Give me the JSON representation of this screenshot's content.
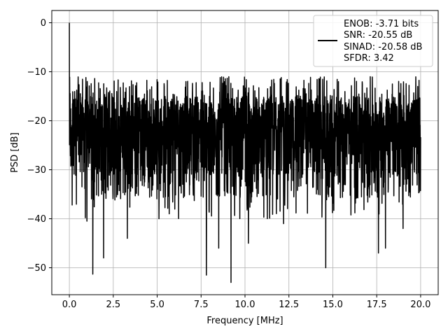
{
  "chart_data": {
    "type": "line",
    "title": "",
    "xlabel": "Frequency [MHz]",
    "ylabel": "PSD [dB]",
    "xlim": [
      -1.0,
      21.0
    ],
    "ylim": [
      -55.5,
      2.5
    ],
    "xticks": [
      0.0,
      2.5,
      5.0,
      7.5,
      10.0,
      12.5,
      15.0,
      17.5,
      20.0
    ],
    "xtick_labels": [
      "0.0",
      "2.5",
      "5.0",
      "7.5",
      "10.0",
      "12.5",
      "15.0",
      "17.5",
      "20.0"
    ],
    "yticks": [
      0,
      -10,
      -20,
      -30,
      -40,
      -50
    ],
    "ytick_labels": [
      "0",
      "−10",
      "−20",
      "−30",
      "−40",
      "−50"
    ],
    "grid": true,
    "legend_position": "top-right",
    "legend_entries": [
      "ENOB: -3.71 bits",
      "SNR: -20.55 dB",
      "SINAD: -20.58 dB",
      "SFDR: 3.42"
    ],
    "line_color": "#000000",
    "x_range": [
      0.0,
      20.0
    ],
    "dc_peak": {
      "x": 0.0,
      "y": 0.0
    },
    "noise_floor": {
      "typical_low": -27.0,
      "typical_high": -15.0,
      "band_low": -31.0,
      "band_high": -11.0
    },
    "deep_dips": [
      {
        "x": 1.33,
        "y": -51.3
      },
      {
        "x": 1.0,
        "y": -40.5
      },
      {
        "x": 1.95,
        "y": -48.0
      },
      {
        "x": 3.3,
        "y": -44.0
      },
      {
        "x": 5.1,
        "y": -40.0
      },
      {
        "x": 7.8,
        "y": -51.5
      },
      {
        "x": 8.5,
        "y": -46.0
      },
      {
        "x": 9.2,
        "y": -53.0
      },
      {
        "x": 10.2,
        "y": -45.0
      },
      {
        "x": 12.2,
        "y": -41.0
      },
      {
        "x": 14.6,
        "y": -50.0
      },
      {
        "x": 17.6,
        "y": -47.0
      },
      {
        "x": 18.0,
        "y": -46.0
      },
      {
        "x": 19.0,
        "y": -42.0
      }
    ]
  }
}
